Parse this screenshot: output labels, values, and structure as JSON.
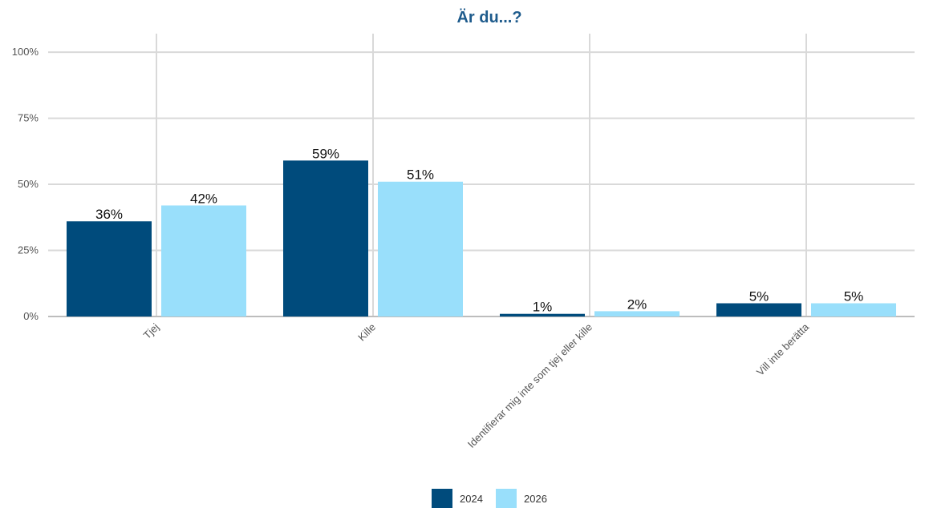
{
  "chart_data": {
    "type": "bar",
    "title": "Är du...?",
    "categories": [
      "Tjej",
      "Kille",
      "Identifierar mig inte som tjej eller kille",
      "Vill inte berätta"
    ],
    "series": [
      {
        "name": "2024",
        "color": "#004b7c",
        "values": [
          36,
          59,
          1,
          5
        ],
        "labels": [
          "36%",
          "59%",
          "1%",
          "5%"
        ]
      },
      {
        "name": "2026",
        "color": "#99dffb",
        "values": [
          42,
          51,
          2,
          5
        ],
        "labels": [
          "42%",
          "51%",
          "2%",
          "5%"
        ]
      }
    ],
    "yticks": [
      "0%",
      "25%",
      "50%",
      "75%",
      "100%"
    ],
    "ytick_values": [
      0,
      25,
      50,
      75,
      100
    ],
    "ylim": [
      0,
      107
    ],
    "grid": true,
    "legend_position": "bottom"
  }
}
